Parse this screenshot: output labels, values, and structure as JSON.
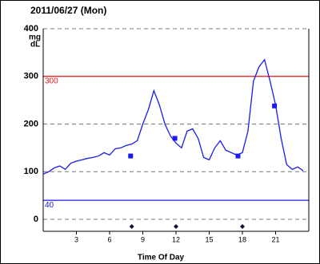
{
  "chart_data": {
    "type": "line",
    "title": "2011/06/27 (Mon)",
    "xlabel": "Time Of Day",
    "ylabel_lines": [
      "mg",
      "dL"
    ],
    "xlim": [
      0,
      24
    ],
    "xticks": [
      3,
      6,
      9,
      12,
      15,
      18,
      21
    ],
    "ylim": [
      -25,
      400
    ],
    "yticks": [
      400,
      300,
      200,
      100,
      0
    ],
    "grid": true,
    "ref_lines": [
      {
        "value": 300,
        "color": "#e8171a"
      },
      {
        "value": 40,
        "color": "#1a1aee"
      }
    ],
    "series": [
      {
        "type": "line",
        "color": "#1a1aee",
        "x": [
          0,
          0.5,
          1,
          1.5,
          2,
          2.5,
          3,
          3.5,
          4,
          4.5,
          5,
          5.5,
          6,
          6.5,
          7,
          7.5,
          8,
          8.5,
          9,
          9.5,
          10,
          10.5,
          11,
          11.5,
          12,
          12.5,
          13,
          13.5,
          14,
          14.5,
          15,
          15.5,
          16,
          16.5,
          17,
          17.5,
          18,
          18.5,
          19,
          19.5,
          20,
          20.5,
          21,
          21.5,
          22,
          22.5,
          23,
          23.5
        ],
        "values": [
          95,
          100,
          108,
          112,
          105,
          118,
          122,
          125,
          128,
          130,
          133,
          140,
          135,
          148,
          150,
          155,
          158,
          165,
          200,
          230,
          270,
          240,
          200,
          175,
          160,
          150,
          185,
          190,
          170,
          130,
          125,
          150,
          165,
          145,
          140,
          135,
          140,
          185,
          290,
          320,
          335,
          290,
          240,
          170,
          115,
          105,
          110,
          102
        ]
      },
      {
        "type": "points",
        "color": "#1a1aee",
        "x": [
          7.9,
          11.9,
          17.6,
          20.9
        ],
        "values": [
          133,
          170,
          133,
          238
        ]
      }
    ],
    "event_x": [
      8,
      12,
      18
    ]
  }
}
